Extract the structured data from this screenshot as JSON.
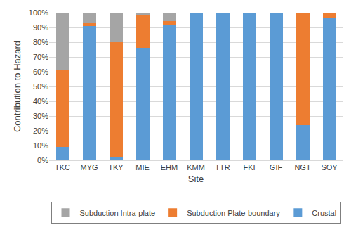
{
  "chart_data": {
    "type": "bar",
    "stacked": true,
    "grid": true,
    "legend": "bottom",
    "x_label": "Site",
    "y_label": "Contribution to Hazard",
    "categories": [
      "TKC",
      "MYG",
      "TKY",
      "MIE",
      "EHM",
      "KMM",
      "TTR",
      "FKI",
      "GIF",
      "NGT",
      "SOY"
    ],
    "series": [
      {
        "name": "Crustal",
        "color": "#5B9BD5",
        "values": [
          9,
          91,
          2,
          76,
          92,
          100,
          100,
          100,
          100,
          24,
          96
        ]
      },
      {
        "name": "Subduction Plate-boundary",
        "color": "#ED7D31",
        "values": [
          52,
          2,
          78,
          22,
          2.5,
          0,
          0,
          0,
          0,
          76,
          4
        ]
      },
      {
        "name": "Subduction Intra-plate",
        "color": "#A5A5A5",
        "values": [
          39,
          7,
          20,
          2,
          5.5,
          0,
          0,
          0,
          0,
          0,
          0
        ]
      }
    ],
    "ylim": [
      0,
      100
    ],
    "yticks": [
      {
        "value": 0,
        "label": "0%"
      },
      {
        "value": 10,
        "label": "10%"
      },
      {
        "value": 20,
        "label": "20%"
      },
      {
        "value": 30,
        "label": "30%"
      },
      {
        "value": 40,
        "label": "40%"
      },
      {
        "value": 50,
        "label": "50%"
      },
      {
        "value": 60,
        "label": "60%"
      },
      {
        "value": 70,
        "label": "70%"
      },
      {
        "value": 80,
        "label": "80%"
      },
      {
        "value": 90,
        "label": "90%"
      },
      {
        "value": 100,
        "label": "100%"
      }
    ]
  }
}
